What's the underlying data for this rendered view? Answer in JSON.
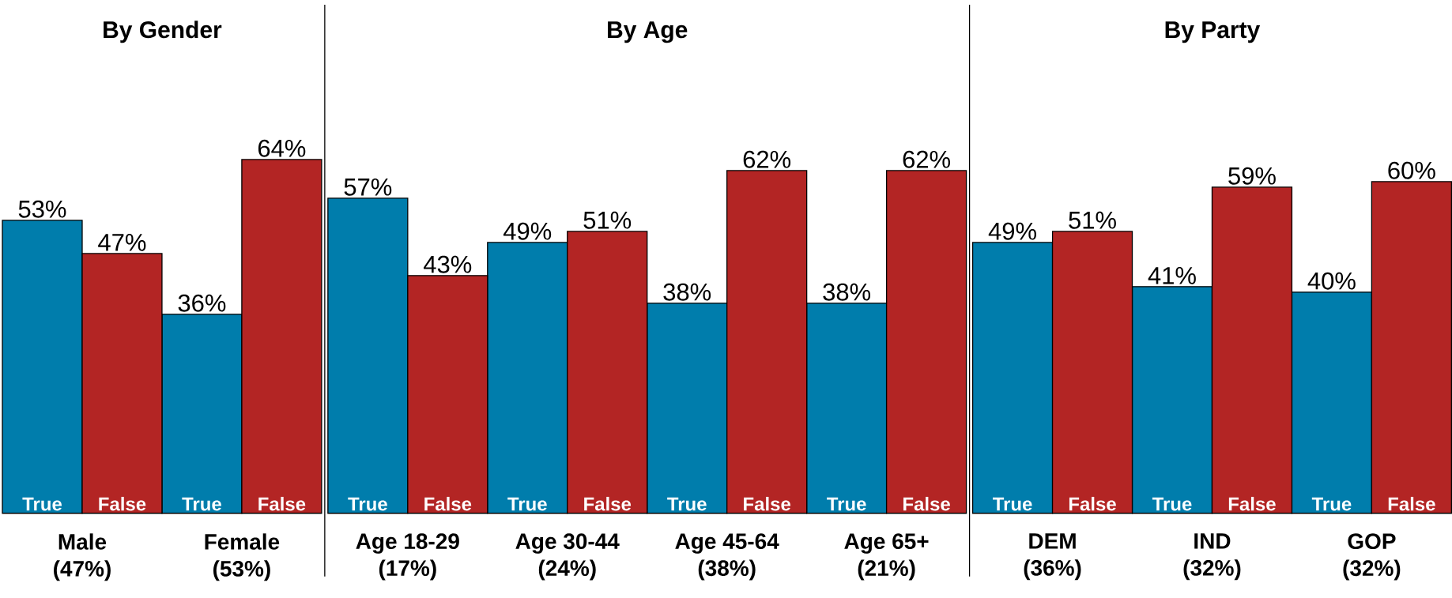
{
  "chart_data": [
    {
      "type": "bar",
      "title": "By Gender",
      "categories": [
        "Male (47%)",
        "Female (53%)"
      ],
      "series": [
        {
          "name": "True",
          "color": "#007dac",
          "values": [
            53,
            36
          ],
          "value_labels": [
            "53%",
            "36%"
          ]
        },
        {
          "name": "False",
          "color": "#b32524",
          "values": [
            47,
            64
          ],
          "value_labels": [
            "47%",
            "64%"
          ]
        }
      ]
    },
    {
      "type": "bar",
      "title": "By Age",
      "categories": [
        "Age 18-29 (17%)",
        "Age 30-44 (24%)",
        "Age 45-64 (38%)",
        "Age 65+ (21%)"
      ],
      "series": [
        {
          "name": "True",
          "color": "#007dac",
          "values": [
            57,
            49,
            38,
            38
          ],
          "value_labels": [
            "57%",
            "49%",
            "38%",
            "38%"
          ]
        },
        {
          "name": "False",
          "color": "#b32524",
          "values": [
            43,
            51,
            62,
            62
          ],
          "value_labels": [
            "43%",
            "51%",
            "62%",
            "62%"
          ]
        }
      ]
    },
    {
      "type": "bar",
      "title": "By Party",
      "categories": [
        "DEM (36%)",
        "IND (32%)",
        "GOP (32%)"
      ],
      "series": [
        {
          "name": "True",
          "color": "#007dac",
          "values": [
            49,
            41,
            40
          ],
          "value_labels": [
            "49%",
            "41%",
            "40%"
          ]
        },
        {
          "name": "False",
          "color": "#b32524",
          "values": [
            51,
            59,
            60
          ],
          "value_labels": [
            "51%",
            "59%",
            "60%"
          ]
        }
      ]
    }
  ]
}
